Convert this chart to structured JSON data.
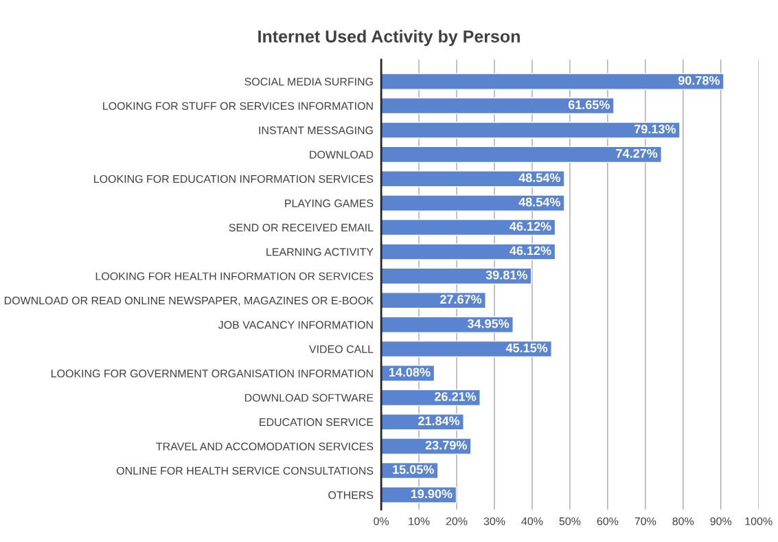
{
  "chart_data": {
    "type": "bar",
    "orientation": "horizontal",
    "title": "Internet Used Activity by Person",
    "categories": [
      "SOCIAL MEDIA SURFING",
      "LOOKING FOR STUFF OR SERVICES INFORMATION",
      "INSTANT MESSAGING",
      "DOWNLOAD",
      "LOOKING FOR EDUCATION INFORMATION SERVICES",
      "PLAYING GAMES",
      "SEND OR RECEIVED EMAIL",
      "LEARNING ACTIVITY",
      "LOOKING FOR HEALTH INFORMATION OR SERVICES",
      "DOWNLOAD OR READ ONLINE NEWSPAPER, MAGAZINES OR E-BOOK",
      "JOB VACANCY INFORMATION",
      "VIDEO CALL",
      "LOOKING FOR GOVERNMENT ORGANISATION INFORMATION",
      "DOWNLOAD SOFTWARE",
      "EDUCATION SERVICE",
      "TRAVEL AND ACCOMODATION SERVICES",
      "ONLINE FOR HEALTH SERVICE CONSULTATIONS",
      "OTHERS"
    ],
    "values": [
      90.78,
      61.65,
      79.13,
      74.27,
      48.54,
      48.54,
      46.12,
      46.12,
      39.81,
      27.67,
      34.95,
      45.15,
      14.08,
      26.21,
      21.84,
      23.79,
      15.05,
      19.9
    ],
    "value_labels": [
      "90.78%",
      "61.65%",
      "79.13%",
      "74.27%",
      "48.54%",
      "48.54%",
      "46.12%",
      "46.12%",
      "39.81%",
      "27.67%",
      "34.95%",
      "45.15%",
      "14.08%",
      "26.21%",
      "21.84%",
      "23.79%",
      "15.05%",
      "19.90%"
    ],
    "color": "#5b84d0",
    "xlim": [
      0,
      100
    ],
    "xticks": [
      {
        "value": 0,
        "label": "0%"
      },
      {
        "value": 10,
        "label": "10%"
      },
      {
        "value": 20,
        "label": "20%"
      },
      {
        "value": 30,
        "label": "30%"
      },
      {
        "value": 40,
        "label": "40%"
      },
      {
        "value": 50,
        "label": "50%"
      },
      {
        "value": 60,
        "label": "60%"
      },
      {
        "value": 70,
        "label": "70%"
      },
      {
        "value": 80,
        "label": "80%"
      },
      {
        "value": 90,
        "label": "90%"
      },
      {
        "value": 100,
        "label": "100%"
      }
    ],
    "grid": "x",
    "legend": false
  }
}
